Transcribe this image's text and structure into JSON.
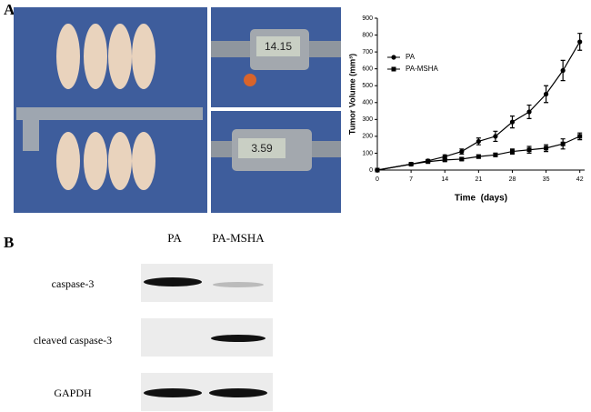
{
  "panels": {
    "a": "A",
    "b": "B"
  },
  "caliper_readings": [
    "14.15",
    "3.59"
  ],
  "chart_data": {
    "type": "line",
    "x": [
      0,
      7,
      10.5,
      14,
      17.5,
      21,
      24.5,
      28,
      31.5,
      35,
      38.5,
      42
    ],
    "series": [
      {
        "name": "PA",
        "color": "#000000",
        "marker": "circle",
        "values": [
          0,
          35,
          55,
          80,
          110,
          170,
          200,
          285,
          345,
          450,
          590,
          760
        ],
        "errors": [
          0,
          5,
          8,
          10,
          15,
          20,
          30,
          35,
          40,
          50,
          60,
          50
        ]
      },
      {
        "name": "PA-MSHA",
        "color": "#000000",
        "marker": "square",
        "values": [
          0,
          35,
          50,
          60,
          65,
          80,
          90,
          110,
          120,
          130,
          155,
          200
        ],
        "errors": [
          0,
          5,
          5,
          8,
          8,
          10,
          10,
          15,
          20,
          20,
          30,
          20
        ]
      }
    ],
    "xlim": [
      0,
      43
    ],
    "xticks": [
      0,
      7,
      14,
      21,
      28,
      35,
      42
    ],
    "ylim": [
      0,
      900
    ],
    "yticks": [
      0,
      100,
      200,
      300,
      400,
      500,
      600,
      700,
      800,
      900
    ],
    "xlabel": "Time  (days)",
    "ylabel": "Tumor Volume (mm³)",
    "legend": "upper-left"
  },
  "blot": {
    "columns": [
      "PA",
      "PA-MSHA"
    ],
    "rows": [
      "caspase-3",
      "cleaved caspase-3",
      "GAPDH"
    ]
  }
}
